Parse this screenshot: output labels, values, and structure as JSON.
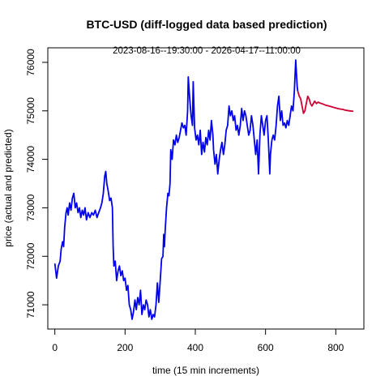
{
  "chart_data": {
    "type": "line",
    "title": "BTC-USD (diff-logged data based prediction)",
    "subtitle": "2023-08-16--19:30:00  -  2026-04-17--11:00:00",
    "xlabel": "time (15 min increments)",
    "ylabel": "price (actual and predicted)",
    "xlim": [
      -20,
      880
    ],
    "ylim": [
      70500,
      76300
    ],
    "x_ticks": [
      0,
      200,
      400,
      600,
      800
    ],
    "y_ticks": [
      71000,
      72000,
      73000,
      74000,
      75000,
      76000
    ],
    "grid": false,
    "legend": "none",
    "series": [
      {
        "color": "#0000ee",
        "points": [
          [
            0,
            71850
          ],
          [
            5,
            71550
          ],
          [
            10,
            71800
          ],
          [
            15,
            71900
          ],
          [
            18,
            72150
          ],
          [
            22,
            72300
          ],
          [
            25,
            72200
          ],
          [
            28,
            72600
          ],
          [
            32,
            72900
          ],
          [
            35,
            73000
          ],
          [
            38,
            72850
          ],
          [
            42,
            73100
          ],
          [
            46,
            72950
          ],
          [
            50,
            73200
          ],
          [
            54,
            73300
          ],
          [
            58,
            73000
          ],
          [
            62,
            73100
          ],
          [
            66,
            72900
          ],
          [
            70,
            73000
          ],
          [
            74,
            72800
          ],
          [
            78,
            72950
          ],
          [
            82,
            72850
          ],
          [
            86,
            73000
          ],
          [
            90,
            72750
          ],
          [
            95,
            72900
          ],
          [
            100,
            72800
          ],
          [
            105,
            72900
          ],
          [
            110,
            72850
          ],
          [
            115,
            72950
          ],
          [
            120,
            72800
          ],
          [
            125,
            72900
          ],
          [
            130,
            73000
          ],
          [
            134,
            73100
          ],
          [
            138,
            73300
          ],
          [
            142,
            73650
          ],
          [
            145,
            73750
          ],
          [
            148,
            73500
          ],
          [
            152,
            73350
          ],
          [
            156,
            73150
          ],
          [
            160,
            73200
          ],
          [
            164,
            73000
          ],
          [
            166,
            72200
          ],
          [
            168,
            71800
          ],
          [
            172,
            71900
          ],
          [
            176,
            71500
          ],
          [
            180,
            71700
          ],
          [
            184,
            71800
          ],
          [
            188,
            71600
          ],
          [
            192,
            71700
          ],
          [
            196,
            71500
          ],
          [
            200,
            71550
          ],
          [
            204,
            71300
          ],
          [
            208,
            71400
          ],
          [
            212,
            71000
          ],
          [
            216,
            70900
          ],
          [
            220,
            70700
          ],
          [
            224,
            70850
          ],
          [
            228,
            71100
          ],
          [
            232,
            70900
          ],
          [
            236,
            71150
          ],
          [
            240,
            71000
          ],
          [
            244,
            71300
          ],
          [
            248,
            70800
          ],
          [
            252,
            71000
          ],
          [
            256,
            70900
          ],
          [
            260,
            71100
          ],
          [
            264,
            71000
          ],
          [
            268,
            70750
          ],
          [
            272,
            70900
          ],
          [
            276,
            70700
          ],
          [
            280,
            70800
          ],
          [
            284,
            70750
          ],
          [
            288,
            71000
          ],
          [
            292,
            71450
          ],
          [
            296,
            71050
          ],
          [
            300,
            71500
          ],
          [
            304,
            71950
          ],
          [
            308,
            72000
          ],
          [
            310,
            72450
          ],
          [
            312,
            72200
          ],
          [
            314,
            72500
          ],
          [
            318,
            73000
          ],
          [
            322,
            73300
          ],
          [
            325,
            73250
          ],
          [
            328,
            73500
          ],
          [
            330,
            74200
          ],
          [
            334,
            74000
          ],
          [
            338,
            74400
          ],
          [
            342,
            74300
          ],
          [
            346,
            74500
          ],
          [
            350,
            74350
          ],
          [
            354,
            74450
          ],
          [
            358,
            74600
          ],
          [
            362,
            74750
          ],
          [
            366,
            74650
          ],
          [
            370,
            74700
          ],
          [
            374,
            74500
          ],
          [
            378,
            75000
          ],
          [
            380,
            75700
          ],
          [
            384,
            75250
          ],
          [
            388,
            74900
          ],
          [
            392,
            74700
          ],
          [
            394,
            75600
          ],
          [
            398,
            74650
          ],
          [
            402,
            74400
          ],
          [
            406,
            74500
          ],
          [
            410,
            74300
          ],
          [
            414,
            74600
          ],
          [
            418,
            74100
          ],
          [
            422,
            74350
          ],
          [
            426,
            74150
          ],
          [
            430,
            74450
          ],
          [
            434,
            74300
          ],
          [
            438,
            74600
          ],
          [
            442,
            74400
          ],
          [
            446,
            74800
          ],
          [
            450,
            74500
          ],
          [
            452,
            74200
          ],
          [
            456,
            73900
          ],
          [
            460,
            74100
          ],
          [
            464,
            73700
          ],
          [
            468,
            74000
          ],
          [
            472,
            74200
          ],
          [
            476,
            74350
          ],
          [
            480,
            74100
          ],
          [
            484,
            74300
          ],
          [
            488,
            74600
          ],
          [
            492,
            74700
          ],
          [
            496,
            75100
          ],
          [
            500,
            74900
          ],
          [
            504,
            75000
          ],
          [
            508,
            74800
          ],
          [
            512,
            74900
          ],
          [
            516,
            74600
          ],
          [
            520,
            74700
          ],
          [
            524,
            74500
          ],
          [
            528,
            74700
          ],
          [
            532,
            75050
          ],
          [
            536,
            74800
          ],
          [
            540,
            75000
          ],
          [
            544,
            74900
          ],
          [
            548,
            74700
          ],
          [
            552,
            74500
          ],
          [
            556,
            74600
          ],
          [
            560,
            74900
          ],
          [
            564,
            74700
          ],
          [
            568,
            74400
          ],
          [
            572,
            74100
          ],
          [
            576,
            74400
          ],
          [
            580,
            73700
          ],
          [
            584,
            74500
          ],
          [
            588,
            74900
          ],
          [
            592,
            74700
          ],
          [
            596,
            74500
          ],
          [
            600,
            74800
          ],
          [
            604,
            74900
          ],
          [
            608,
            74400
          ],
          [
            612,
            73700
          ],
          [
            614,
            74100
          ],
          [
            618,
            74400
          ],
          [
            622,
            74500
          ],
          [
            626,
            74400
          ],
          [
            630,
            74700
          ],
          [
            634,
            75100
          ],
          [
            638,
            75300
          ],
          [
            642,
            74800
          ],
          [
            646,
            75000
          ],
          [
            650,
            74700
          ],
          [
            654,
            74750
          ],
          [
            658,
            74650
          ],
          [
            662,
            74800
          ],
          [
            666,
            74700
          ],
          [
            670,
            74900
          ],
          [
            674,
            75100
          ],
          [
            678,
            75000
          ],
          [
            682,
            75400
          ],
          [
            686,
            76050
          ],
          [
            690,
            75500
          ],
          [
            692,
            75400
          ]
        ]
      },
      {
        "color": "#cc0033",
        "points": [
          [
            692,
            75400
          ],
          [
            696,
            75300
          ],
          [
            700,
            75250
          ],
          [
            704,
            75100
          ],
          [
            708,
            74950
          ],
          [
            712,
            75000
          ],
          [
            716,
            75150
          ],
          [
            720,
            75300
          ],
          [
            724,
            75250
          ],
          [
            728,
            75150
          ],
          [
            732,
            75100
          ],
          [
            736,
            75150
          ],
          [
            740,
            75200
          ],
          [
            745,
            75150
          ],
          [
            750,
            75180
          ],
          [
            755,
            75160
          ],
          [
            760,
            75150
          ],
          [
            770,
            75120
          ],
          [
            780,
            75100
          ],
          [
            790,
            75080
          ],
          [
            800,
            75060
          ],
          [
            810,
            75040
          ],
          [
            820,
            75030
          ],
          [
            830,
            75010
          ],
          [
            840,
            75000
          ],
          [
            850,
            74990
          ]
        ]
      }
    ]
  }
}
